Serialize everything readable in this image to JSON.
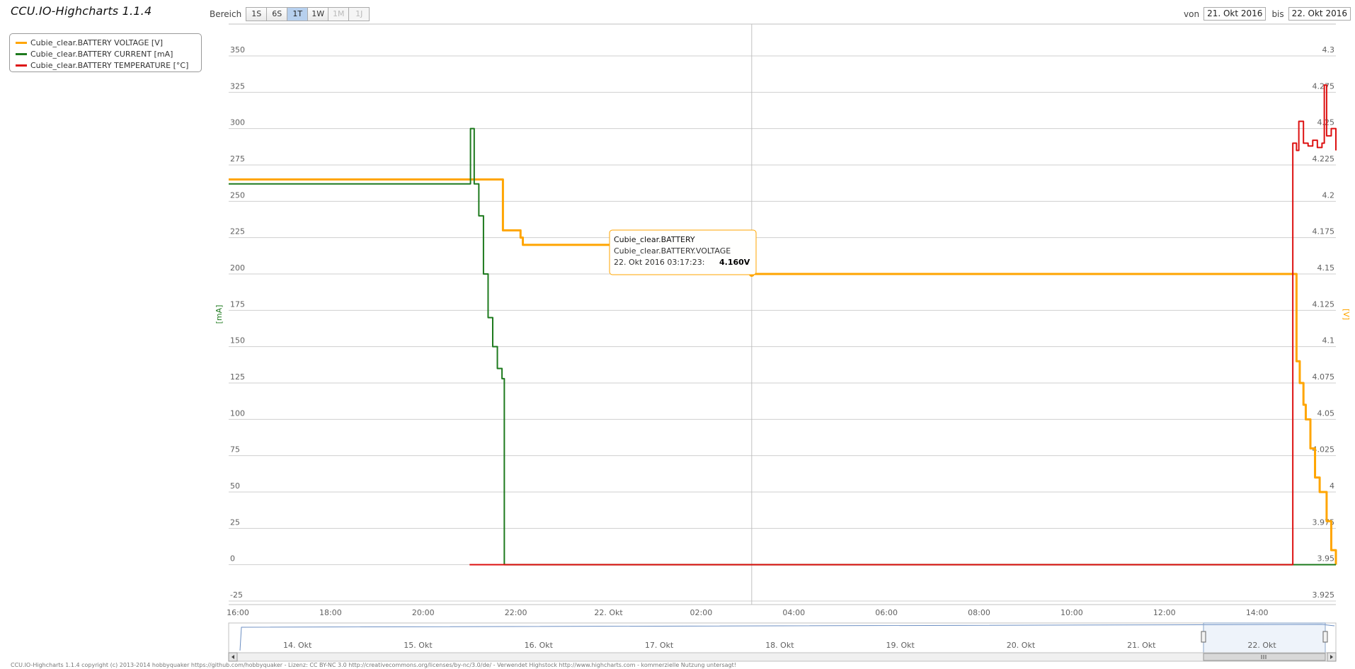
{
  "app": {
    "title": "CCU.IO-Highcharts 1.1.4"
  },
  "range": {
    "label": "Bereich",
    "buttons": [
      {
        "label": "1S",
        "state": "normal"
      },
      {
        "label": "6S",
        "state": "normal"
      },
      {
        "label": "1T",
        "state": "active"
      },
      {
        "label": "1W",
        "state": "normal"
      },
      {
        "label": "1M",
        "state": "disabled"
      },
      {
        "label": "1J",
        "state": "disabled"
      }
    ]
  },
  "dates": {
    "from_label": "von",
    "from_value": "21. Okt 2016",
    "to_label": "bis",
    "to_value": "22. Okt 2016"
  },
  "legend": {
    "items": [
      {
        "label": "Cubie_clear.BATTERY VOLTAGE [V]",
        "color": "#FFA500"
      },
      {
        "label": "Cubie_clear.BATTERY CURRENT [mA]",
        "color": "#1E7A1E"
      },
      {
        "label": "Cubie_clear.BATTERY TEMPERATURE [°C]",
        "color": "#DD1111"
      }
    ]
  },
  "tooltip": {
    "title": "Cubie_clear.BATTERY",
    "series": "Cubie_clear.BATTERY.VOLTAGE",
    "time": "22. Okt 2016 03:17:23:",
    "value": "4.160V",
    "border_color": "#FFA500"
  },
  "navigator": {
    "labels": [
      "14. Okt",
      "15. Okt",
      "16. Okt",
      "17. Okt",
      "18. Okt",
      "19. Okt",
      "20. Okt",
      "21. Okt",
      "22. Okt"
    ]
  },
  "footer": {
    "text": "CCU.IO-Highcharts 1.1.4 copyright (c) 2013-2014 hobbyquaker https://github.com/hobbyquaker - Lizenz: CC BY-NC 3.0 http://creativecommons.org/licenses/by-nc/3.0/de/ - Verwendet Highstock http://www.highcharts.com - kommerzielle Nutzung untersagt!"
  },
  "chart_data": {
    "type": "line",
    "x_axis": {
      "labels": [
        "16:00",
        "18:00",
        "20:00",
        "22:00",
        "22. Okt",
        "02:00",
        "04:00",
        "06:00",
        "08:00",
        "10:00",
        "12:00",
        "14:00"
      ],
      "range_hours_since_16_00": [
        0,
        23.9
      ]
    },
    "y_left": {
      "title": "[mA]",
      "ticks": [
        350,
        325,
        300,
        275,
        250,
        225,
        200,
        175,
        150,
        125,
        100,
        75,
        50,
        25,
        0,
        -25
      ],
      "ylim": [
        -25,
        350
      ]
    },
    "y_right": {
      "title": "[V]",
      "ticks": [
        "4.3",
        "4.275",
        "4.25",
        "4.225",
        "4.2",
        "4.175",
        "4.15",
        "4.125",
        "4.1",
        "4.075",
        "4.05",
        "4.025",
        "4",
        "3.975",
        "3.95",
        "3.925"
      ],
      "ylim": [
        3.925,
        4.3
      ]
    },
    "crosshair_hour": 11.29,
    "series": [
      {
        "name": "Cubie_clear.BATTERY VOLTAGE [V]",
        "axis": "right",
        "color": "#FFA500",
        "x": [
          0,
          5.9,
          5.92,
          6.2,
          6.3,
          6.35,
          6.4,
          7.0,
          10.2,
          10.4,
          11.2,
          11.3,
          12.3,
          12.7,
          23.0,
          23.05,
          23.12,
          23.2,
          23.25,
          23.35,
          23.45,
          23.55,
          23.7,
          23.8,
          23.9
        ],
        "y": [
          4.215,
          4.215,
          4.18,
          4.18,
          4.175,
          4.17,
          4.17,
          4.17,
          4.165,
          4.16,
          4.16,
          4.15,
          4.15,
          4.15,
          4.15,
          4.09,
          4.075,
          4.06,
          4.05,
          4.03,
          4.01,
          4.0,
          3.98,
          3.96,
          3.95
        ]
      },
      {
        "name": "Cubie_clear.BATTERY CURRENT [mA]",
        "axis": "left",
        "color": "#1E7A1E",
        "x": [
          0,
          5.2,
          5.22,
          5.3,
          5.4,
          5.5,
          5.6,
          5.7,
          5.8,
          5.9,
          5.95,
          5.97,
          23.9
        ],
        "y": [
          262,
          262,
          300,
          262,
          240,
          200,
          170,
          150,
          135,
          128,
          0,
          0,
          0
        ]
      },
      {
        "name": "Cubie_clear.BATTERY TEMPERATURE [°C]",
        "axis": "left",
        "color": "#DD1111",
        "x": [
          5.2,
          22.9,
          22.97,
          23.05,
          23.1,
          23.2,
          23.3,
          23.4,
          23.5,
          23.6,
          23.65,
          23.7,
          23.8,
          23.9
        ],
        "y": [
          0,
          0,
          290,
          285,
          305,
          290,
          288,
          292,
          287,
          290,
          330,
          295,
          300,
          285
        ]
      }
    ]
  }
}
